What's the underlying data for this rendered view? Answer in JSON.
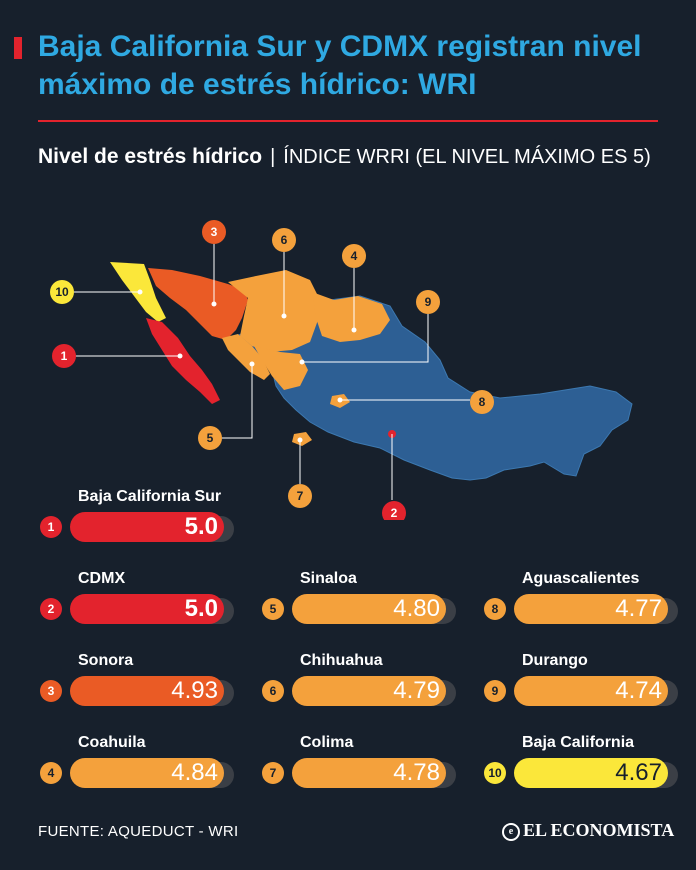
{
  "header": {
    "title": "Baja California Sur y CDMX registran nivel máximo de estrés hídrico: WRI",
    "subtitle_bold": "Nivel de estrés hídrico",
    "subtitle_sep": "|",
    "subtitle_rest": "ÍNDICE WRRI  (EL NIVEL MÁXIMO ES 5)"
  },
  "colors": {
    "background": "#17202c",
    "title": "#2fa9e2",
    "accent": "#e3232d",
    "max": "#e3232d",
    "high": "#ea5b25",
    "mid": "#f4a13c",
    "low": "#fbe73a",
    "other": "#2d5f94"
  },
  "chart_data": {
    "type": "table",
    "max_value": 5,
    "entries": [
      {
        "rank": "1",
        "name": "Baja California Sur",
        "value": "5.0",
        "level": "max"
      },
      {
        "rank": "2",
        "name": "CDMX",
        "value": "5.0",
        "level": "max"
      },
      {
        "rank": "3",
        "name": "Sonora",
        "value": "4.93",
        "level": "high"
      },
      {
        "rank": "4",
        "name": "Coahuila",
        "value": "4.84",
        "level": "mid"
      },
      {
        "rank": "5",
        "name": "Sinaloa",
        "value": "4.80",
        "level": "mid"
      },
      {
        "rank": "6",
        "name": "Chihuahua",
        "value": "4.79",
        "level": "mid"
      },
      {
        "rank": "7",
        "name": "Colima",
        "value": "4.78",
        "level": "mid"
      },
      {
        "rank": "8",
        "name": "Aguascalientes",
        "value": "4.77",
        "level": "mid"
      },
      {
        "rank": "9",
        "name": "Durango",
        "value": "4.74",
        "level": "mid"
      },
      {
        "rank": "10",
        "name": "Baja California",
        "value": "4.67",
        "level": "low"
      }
    ]
  },
  "footer": {
    "source": "FUENTE: AQUEDUCT - WRI",
    "brand": "EL ECONOMISTA",
    "brand_icon": "e-circle-icon"
  }
}
